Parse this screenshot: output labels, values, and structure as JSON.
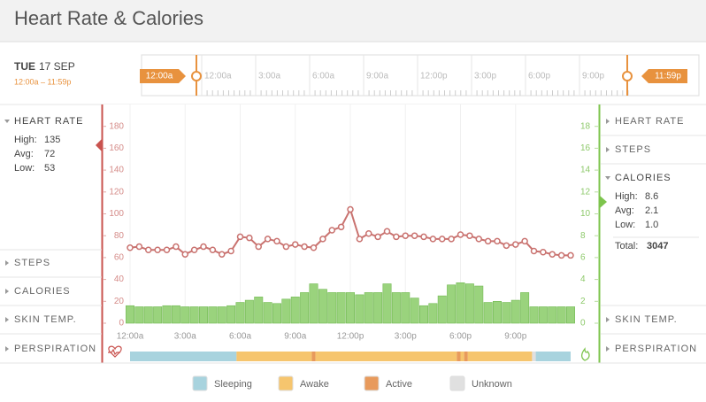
{
  "header": {
    "title": "Heart Rate & Calories"
  },
  "date": {
    "day": "TUE",
    "date": "17 SEP",
    "range": "12:00a – 11:59p"
  },
  "timeline": {
    "start": "12:00a",
    "end": "11:59p",
    "labels": [
      "12:00a",
      "3:00a",
      "6:00a",
      "9:00a",
      "12:00p",
      "3:00p",
      "6:00p",
      "9:00p"
    ]
  },
  "left_panel": {
    "sections": [
      {
        "title": "HEART RATE",
        "stats": [
          {
            "label": "High:",
            "value": "135"
          },
          {
            "label": "Avg:",
            "value": "72"
          },
          {
            "label": "Low:",
            "value": "53"
          }
        ]
      },
      {
        "title": "STEPS"
      },
      {
        "title": "CALORIES"
      },
      {
        "title": "SKIN TEMP."
      },
      {
        "title": "PERSPIRATION"
      }
    ]
  },
  "right_panel": {
    "sections": [
      {
        "title": "HEART RATE"
      },
      {
        "title": "STEPS"
      },
      {
        "title": "CALORIES",
        "stats": [
          {
            "label": "High:",
            "value": "8.6"
          },
          {
            "label": "Avg:",
            "value": "2.1"
          },
          {
            "label": "Low:",
            "value": "1.0"
          }
        ],
        "total": {
          "label": "Total:",
          "value": "3047"
        }
      },
      {
        "title": "SKIN TEMP."
      },
      {
        "title": "PERSPIRATION"
      }
    ]
  },
  "chart_data": {
    "type": "line",
    "categories": [
      "12:00a",
      null,
      null,
      null,
      null,
      null,
      "3:00a",
      null,
      null,
      null,
      null,
      null,
      "6:00a",
      null,
      null,
      null,
      null,
      null,
      "9:00a",
      null,
      null,
      null,
      null,
      null,
      "12:00p",
      null,
      null,
      null,
      null,
      null,
      "3:00p",
      null,
      null,
      null,
      null,
      null,
      "6:00p",
      null,
      null,
      null,
      null,
      null,
      "9:00p",
      null,
      null,
      null,
      null,
      null,
      null
    ],
    "ylim": [
      0,
      200
    ],
    "yticks": [
      0,
      20,
      40,
      60,
      80,
      100,
      120,
      140,
      160,
      180
    ],
    "y2lim": [
      0,
      20
    ],
    "y2ticks": [
      0,
      2,
      4,
      6,
      8,
      10,
      12,
      14,
      16,
      18
    ],
    "series": [
      {
        "type": "line",
        "color": "#c9726f",
        "values": [
          69,
          70,
          67,
          67,
          67,
          70,
          63,
          67,
          70,
          67,
          63,
          66,
          79,
          78,
          70,
          77,
          75,
          70,
          72,
          70,
          69,
          77,
          85,
          88,
          104,
          77,
          82,
          79,
          84,
          79,
          80,
          80,
          79,
          77,
          77,
          77,
          81,
          80,
          77,
          75,
          75,
          71,
          72,
          75,
          66,
          65,
          63,
          62,
          62
        ]
      },
      {
        "type": "bar",
        "axis": "y2",
        "color": "#9ad37d",
        "values": [
          1.6,
          1.5,
          1.5,
          1.5,
          1.6,
          1.6,
          1.5,
          1.5,
          1.5,
          1.5,
          1.5,
          1.6,
          1.9,
          2.1,
          2.4,
          1.9,
          1.8,
          2.2,
          2.4,
          2.8,
          3.6,
          3.1,
          2.8,
          2.8,
          2.8,
          2.6,
          2.8,
          2.8,
          3.6,
          2.8,
          2.8,
          2.3,
          1.6,
          1.8,
          2.5,
          3.5,
          3.7,
          3.6,
          3.4,
          1.9,
          2.0,
          1.9,
          2.1,
          2.8,
          1.5,
          1.5,
          1.5,
          1.5,
          1.5
        ]
      }
    ]
  },
  "activity_strip": {
    "xlim": [
      0,
      24
    ],
    "segments": [
      {
        "start": 0,
        "end": 5.8,
        "color": "#a8d3de"
      },
      {
        "start": 5.8,
        "end": 9.9,
        "color": "#f6c56e"
      },
      {
        "start": 9.9,
        "end": 10.1,
        "color": "#e89a5c"
      },
      {
        "start": 10.1,
        "end": 17.8,
        "color": "#f6c56e"
      },
      {
        "start": 17.8,
        "end": 18.0,
        "color": "#e89a5c"
      },
      {
        "start": 18.0,
        "end": 18.2,
        "color": "#f6c56e"
      },
      {
        "start": 18.2,
        "end": 18.4,
        "color": "#e89a5c"
      },
      {
        "start": 18.4,
        "end": 21.9,
        "color": "#f6c56e"
      },
      {
        "start": 21.9,
        "end": 22.1,
        "color": "#e0e0e0"
      },
      {
        "start": 22.1,
        "end": 24,
        "color": "#a8d3de"
      }
    ]
  },
  "legend": [
    {
      "label": "Sleeping",
      "color": "#a8d3de"
    },
    {
      "label": "Awake",
      "color": "#f6c56e"
    },
    {
      "label": "Active",
      "color": "#e89a5c"
    },
    {
      "label": "Unknown",
      "color": "#e0e0e0"
    }
  ]
}
